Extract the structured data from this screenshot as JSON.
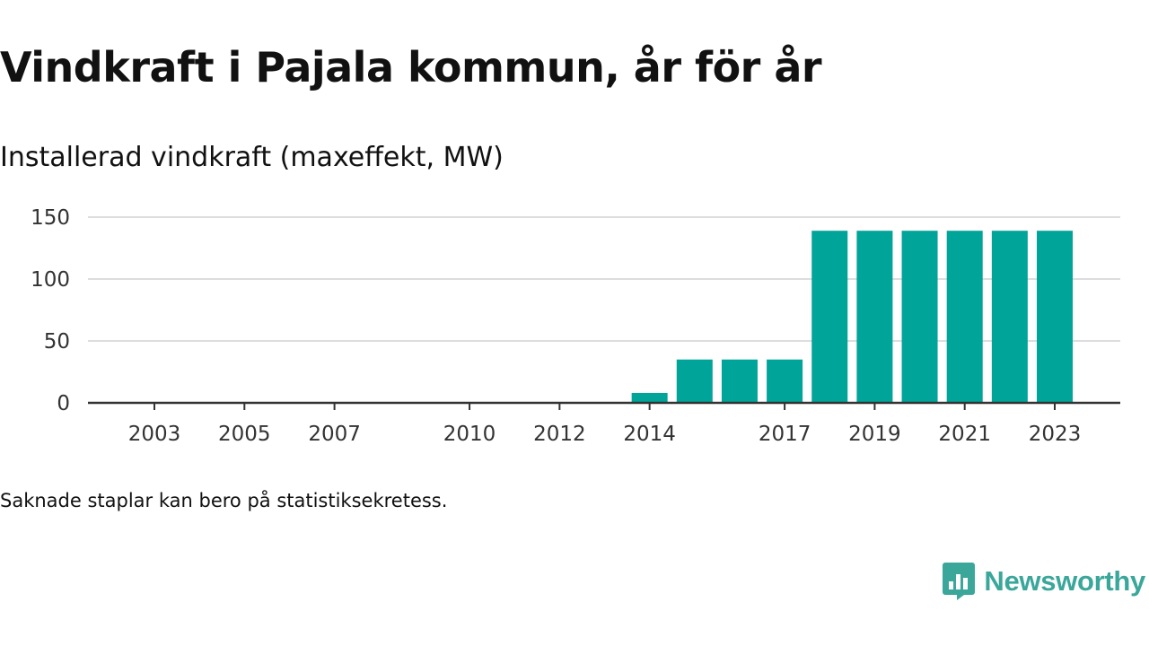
{
  "title": "Vindkraft i Pajala kommun, år för år",
  "subtitle": "Installerad vindkraft (maxeffekt, MW)",
  "footnote": "Saknade staplar kan bero på statistiksekretess.",
  "logo": {
    "text": "Newsworthy",
    "icon": "newsworthy-logo-icon"
  },
  "colors": {
    "bar": "#00a499",
    "grid": "#dddddd",
    "axis": "#333333",
    "logo": "#3aa79a"
  },
  "chart_data": {
    "type": "bar",
    "categories": [
      "2003",
      "2004",
      "2005",
      "2006",
      "2007",
      "2008",
      "2009",
      "2010",
      "2011",
      "2012",
      "2013",
      "2014",
      "2015",
      "2016",
      "2017",
      "2018",
      "2019",
      "2020",
      "2021",
      "2022",
      "2023"
    ],
    "values": [
      0,
      0,
      0,
      0,
      0,
      null,
      null,
      0,
      0,
      0,
      0,
      8,
      35,
      35,
      35,
      139,
      139,
      139,
      139,
      139,
      139
    ],
    "x_tick_labels": [
      "2003",
      "2005",
      "2007",
      "2010",
      "2012",
      "2014",
      "2017",
      "2019",
      "2021",
      "2023"
    ],
    "y_ticks": [
      0,
      50,
      100,
      150
    ],
    "ylim": [
      0,
      150
    ],
    "xlabel": "",
    "ylabel": "",
    "grid": true,
    "legend": "none"
  }
}
